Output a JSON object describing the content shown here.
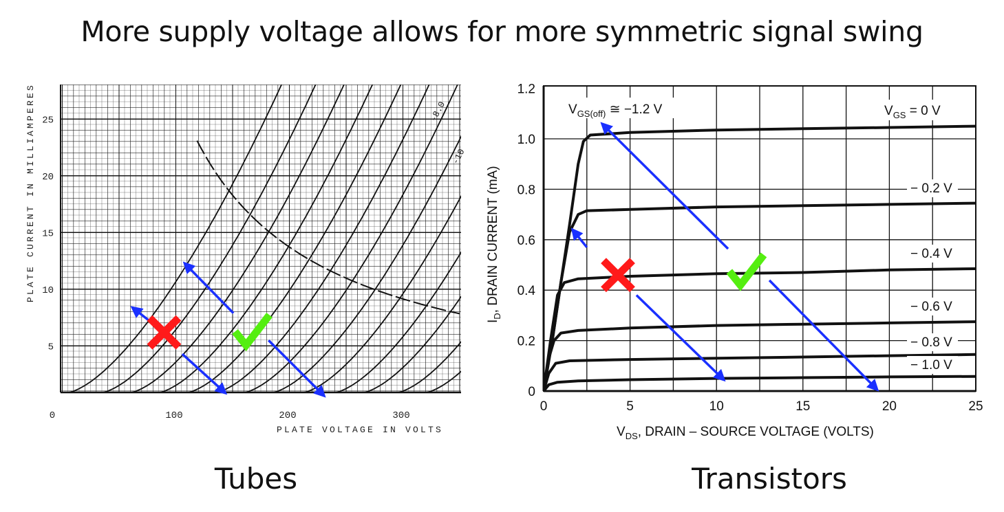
{
  "slide": {
    "title": "More supply voltage allows for more symmetric signal swing",
    "left_caption": "Tubes",
    "right_caption": "Transistors"
  },
  "colors": {
    "cross": "#ff1a1a",
    "check": "#55ee11",
    "arrow": "#1a30ff",
    "curve": "#111111"
  },
  "chart_data": [
    {
      "type": "line",
      "xlabel": "PLATE VOLTAGE IN VOLTS",
      "ylabel": "PLATE CURRENT IN MILLIAMPERES",
      "xlim": [
        0,
        350
      ],
      "ylim": [
        0.9,
        28
      ],
      "xticks": [
        "0",
        "100",
        "200",
        "300"
      ],
      "yticks": [
        "5",
        "10",
        "15",
        "20",
        "25"
      ],
      "grid": "dense graph paper",
      "curve_labels": [
        "-8.0",
        "-10"
      ],
      "curves_x_intercepts": [
        5,
        35,
        60,
        85,
        110,
        135,
        160,
        185,
        212,
        240,
        265,
        295,
        320
      ],
      "curve_law": "I proportional to (V - V0)^1.5",
      "max_dissipation_line": {
        "style": "dashed",
        "from_volts": 119,
        "to_volts": 350,
        "watts": 2.75
      },
      "annotations": {
        "cross": [
          90,
          6.2
        ],
        "check": [
          167,
          6.4
        ],
        "arrows": [
          [
            [
              76,
              7.3
            ],
            [
              62,
              8.4
            ]
          ],
          [
            [
              106,
              4.3
            ],
            [
              144,
              0.85
            ]
          ],
          [
            [
              151,
              7.9
            ],
            [
              108,
              12.3
            ]
          ],
          [
            [
              182,
              5.5
            ],
            [
              231,
              0.6
            ]
          ]
        ]
      }
    },
    {
      "type": "line",
      "xlabel": {
        "main": "V",
        "sub": "DS",
        "rest": ", DRAIN – SOURCE VOLTAGE (VOLTS)"
      },
      "ylabel": {
        "main": "I",
        "sub": "D",
        "rest": ", DRAIN CURRENT (mA)"
      },
      "xlim": [
        0,
        25
      ],
      "ylim": [
        0,
        1.2
      ],
      "xticks": [
        "0",
        "5",
        "10",
        "15",
        "20",
        "25"
      ],
      "yticks": [
        "0",
        "0.2",
        "0.4",
        "0.6",
        "0.8",
        "1.0",
        "1.2"
      ],
      "grid": true,
      "annotation_text": {
        "main": "V",
        "sub": "GS(off)",
        "rest": " ≅ −1.2 V"
      },
      "series": [
        {
          "name": "VGS = 0 V",
          "label": {
            "main": "V",
            "sub": "GS",
            "rest": " = 0 V"
          },
          "points": [
            [
              0,
              0
            ],
            [
              0.5,
              0.2
            ],
            [
              1,
              0.43
            ],
            [
              1.5,
              0.66
            ],
            [
              2,
              0.9
            ],
            [
              2.3,
              0.99
            ],
            [
              2.7,
              1.015
            ],
            [
              5,
              1.025
            ],
            [
              10,
              1.035
            ],
            [
              15,
              1.04
            ],
            [
              20,
              1.045
            ],
            [
              25,
              1.05
            ]
          ]
        },
        {
          "name": "−0.2 V",
          "label": "− 0.2 V",
          "points": [
            [
              0,
              0
            ],
            [
              0.5,
              0.2
            ],
            [
              1,
              0.43
            ],
            [
              1.5,
              0.63
            ],
            [
              2,
              0.7
            ],
            [
              2.5,
              0.715
            ],
            [
              5,
              0.72
            ],
            [
              10,
              0.73
            ],
            [
              15,
              0.735
            ],
            [
              20,
              0.74
            ],
            [
              25,
              0.745
            ]
          ]
        },
        {
          "name": "−0.4 V",
          "label": "− 0.4 V",
          "points": [
            [
              0,
              0
            ],
            [
              0.4,
              0.2
            ],
            [
              0.8,
              0.38
            ],
            [
              1.2,
              0.43
            ],
            [
              2,
              0.445
            ],
            [
              5,
              0.455
            ],
            [
              10,
              0.465
            ],
            [
              15,
              0.47
            ],
            [
              20,
              0.48
            ],
            [
              25,
              0.485
            ]
          ]
        },
        {
          "name": "−0.6 V",
          "label": "− 0.6 V",
          "points": [
            [
              0,
              0
            ],
            [
              0.3,
              0.13
            ],
            [
              0.6,
              0.2
            ],
            [
              1,
              0.23
            ],
            [
              2,
              0.24
            ],
            [
              5,
              0.25
            ],
            [
              10,
              0.26
            ],
            [
              15,
              0.265
            ],
            [
              20,
              0.27
            ],
            [
              25,
              0.275
            ]
          ]
        },
        {
          "name": "−0.8 V",
          "label": "− 0.8 V",
          "points": [
            [
              0,
              0
            ],
            [
              0.3,
              0.07
            ],
            [
              0.7,
              0.11
            ],
            [
              1.5,
              0.12
            ],
            [
              5,
              0.125
            ],
            [
              10,
              0.13
            ],
            [
              15,
              0.135
            ],
            [
              20,
              0.14
            ],
            [
              25,
              0.145
            ]
          ]
        },
        {
          "name": "−1.0 V",
          "label": "− 1.0 V",
          "points": [
            [
              0,
              0
            ],
            [
              0.3,
              0.025
            ],
            [
              0.8,
              0.035
            ],
            [
              2,
              0.04
            ],
            [
              5,
              0.045
            ],
            [
              10,
              0.05
            ],
            [
              15,
              0.053
            ],
            [
              20,
              0.056
            ],
            [
              25,
              0.058
            ]
          ]
        }
      ],
      "annotations": {
        "cross": [
          4.3,
          0.46
        ],
        "check": [
          11.7,
          0.48
        ],
        "arrows": [
          [
            [
              2.5,
              0.57
            ],
            [
              1.67,
              0.64
            ]
          ],
          [
            [
              5.37,
              0.38
            ],
            [
              10.43,
              0.044
            ]
          ],
          [
            [
              10.67,
              0.564
            ],
            [
              3.38,
              1.06
            ]
          ],
          [
            [
              13.06,
              0.439
            ],
            [
              19.3,
              0.005
            ]
          ]
        ]
      }
    }
  ]
}
